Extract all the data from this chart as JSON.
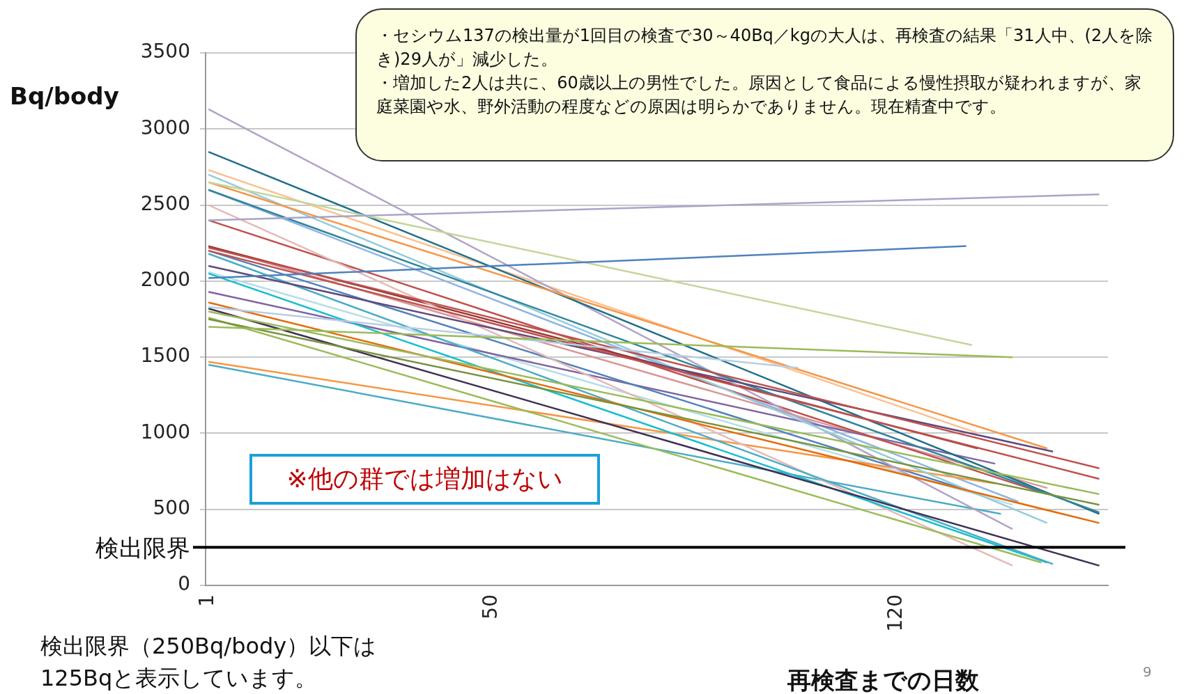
{
  "chart_data": {
    "type": "line",
    "xlabel": "再検査までの日数",
    "ylabel": "Bq/body",
    "xlim": [
      0.5,
      156.5
    ],
    "xticks": [
      1,
      50,
      120
    ],
    "ylim": [
      0,
      3500
    ],
    "yticks": [
      0,
      500,
      1000,
      1500,
      2000,
      2500,
      3000,
      3500
    ],
    "grid": "y",
    "legend": false,
    "marker": "none",
    "line_style": "solid",
    "series": [
      {
        "color": "#a6a6c8",
        "x": [
          1,
          155
        ],
        "values": [
          2400,
          2570
        ]
      },
      {
        "color": "#4f81bd",
        "x": [
          1,
          132
        ],
        "values": [
          2020,
          2230
        ]
      },
      {
        "color": "#c3d69b",
        "x": [
          1,
          133
        ],
        "values": [
          2650,
          1580
        ]
      },
      {
        "color": "#9bbb59",
        "x": [
          1,
          140
        ],
        "values": [
          1700,
          1500
        ]
      },
      {
        "color": "#b9cde5",
        "x": [
          1,
          103
        ],
        "values": [
          1830,
          1430
        ]
      },
      {
        "color": "#c0504d",
        "x": [
          1,
          155
        ],
        "values": [
          2220,
          770
        ]
      },
      {
        "color": "#c0504d",
        "x": [
          1,
          155
        ],
        "values": [
          2200,
          700
        ]
      },
      {
        "color": "#f79646",
        "x": [
          1,
          146
        ],
        "values": [
          2650,
          900
        ]
      },
      {
        "color": "#604a7b",
        "x": [
          1,
          147
        ],
        "values": [
          2100,
          880
        ]
      },
      {
        "color": "#9bbb59",
        "x": [
          1,
          155
        ],
        "values": [
          1800,
          600
        ]
      },
      {
        "color": "#77933c",
        "x": [
          1,
          155
        ],
        "values": [
          1750,
          530
        ]
      },
      {
        "color": "#31859c",
        "x": [
          1,
          155
        ],
        "values": [
          2600,
          480
        ]
      },
      {
        "color": "#1f6f8b",
        "x": [
          1,
          155
        ],
        "values": [
          2850,
          470
        ]
      },
      {
        "color": "#e46c0a",
        "x": [
          1,
          155
        ],
        "values": [
          1860,
          410
        ]
      },
      {
        "color": "#93cddd",
        "x": [
          1,
          146
        ],
        "values": [
          2700,
          410
        ]
      },
      {
        "color": "#b3a2c7",
        "x": [
          1,
          140
        ],
        "values": [
          3130,
          370
        ]
      },
      {
        "color": "#403152",
        "x": [
          1,
          155
        ],
        "values": [
          1820,
          130
        ]
      },
      {
        "color": "#4bacc6",
        "x": [
          1,
          147
        ],
        "values": [
          2180,
          140
        ]
      },
      {
        "color": "#17becf",
        "x": [
          1,
          146
        ],
        "values": [
          2050,
          150
        ]
      },
      {
        "color": "#9bbb59",
        "x": [
          1,
          145
        ],
        "values": [
          1760,
          150
        ]
      },
      {
        "color": "#e6b9b8",
        "x": [
          1,
          140
        ],
        "values": [
          2500,
          130
        ]
      },
      {
        "color": "#f79646",
        "x": [
          1,
          137
        ],
        "values": [
          1470,
          670
        ]
      },
      {
        "color": "#4bacc6",
        "x": [
          1,
          138
        ],
        "values": [
          1450,
          470
        ]
      },
      {
        "color": "#4f81bd",
        "x": [
          1,
          131
        ],
        "values": [
          2200,
          640
        ]
      },
      {
        "color": "#953735",
        "x": [
          1,
          134
        ],
        "values": [
          2230,
          900
        ]
      },
      {
        "color": "#c0504d",
        "x": [
          1,
          146
        ],
        "values": [
          2400,
          600
        ]
      },
      {
        "color": "#fac090",
        "x": [
          1,
          134
        ],
        "values": [
          2730,
          1000
        ]
      },
      {
        "color": "#8064a2",
        "x": [
          1,
          137
        ],
        "values": [
          1930,
          800
        ]
      },
      {
        "color": "#b7dee8",
        "x": [
          1,
          140
        ],
        "values": [
          2060,
          530
        ]
      },
      {
        "color": "#d99694",
        "x": [
          1,
          146
        ],
        "values": [
          2230,
          640
        ]
      },
      {
        "color": "#8eb4e3",
        "x": [
          1,
          141
        ],
        "values": [
          2600,
          550
        ]
      }
    ],
    "ref_lines": [
      {
        "axis": "y",
        "value": 250,
        "label": "検出限界",
        "color": "#000000"
      }
    ],
    "annotations": [
      "・セシウム137の検出量が1回目の検査で30～40Bq／kgの大人は、再検査の結果「31人中、(2人を除き)29人が」減少した。",
      "・増加した2人は共に、60歳以上の男性でした。原因として食品による慢性摂取が疑われますが、家庭菜園や水、野外活動の程度などの原因は明らかでありません。現在精査中です。",
      "※他の群では増加はない",
      "検出限界（250Bq/body）以下は125Bqと表示しています。",
      "9"
    ]
  }
}
